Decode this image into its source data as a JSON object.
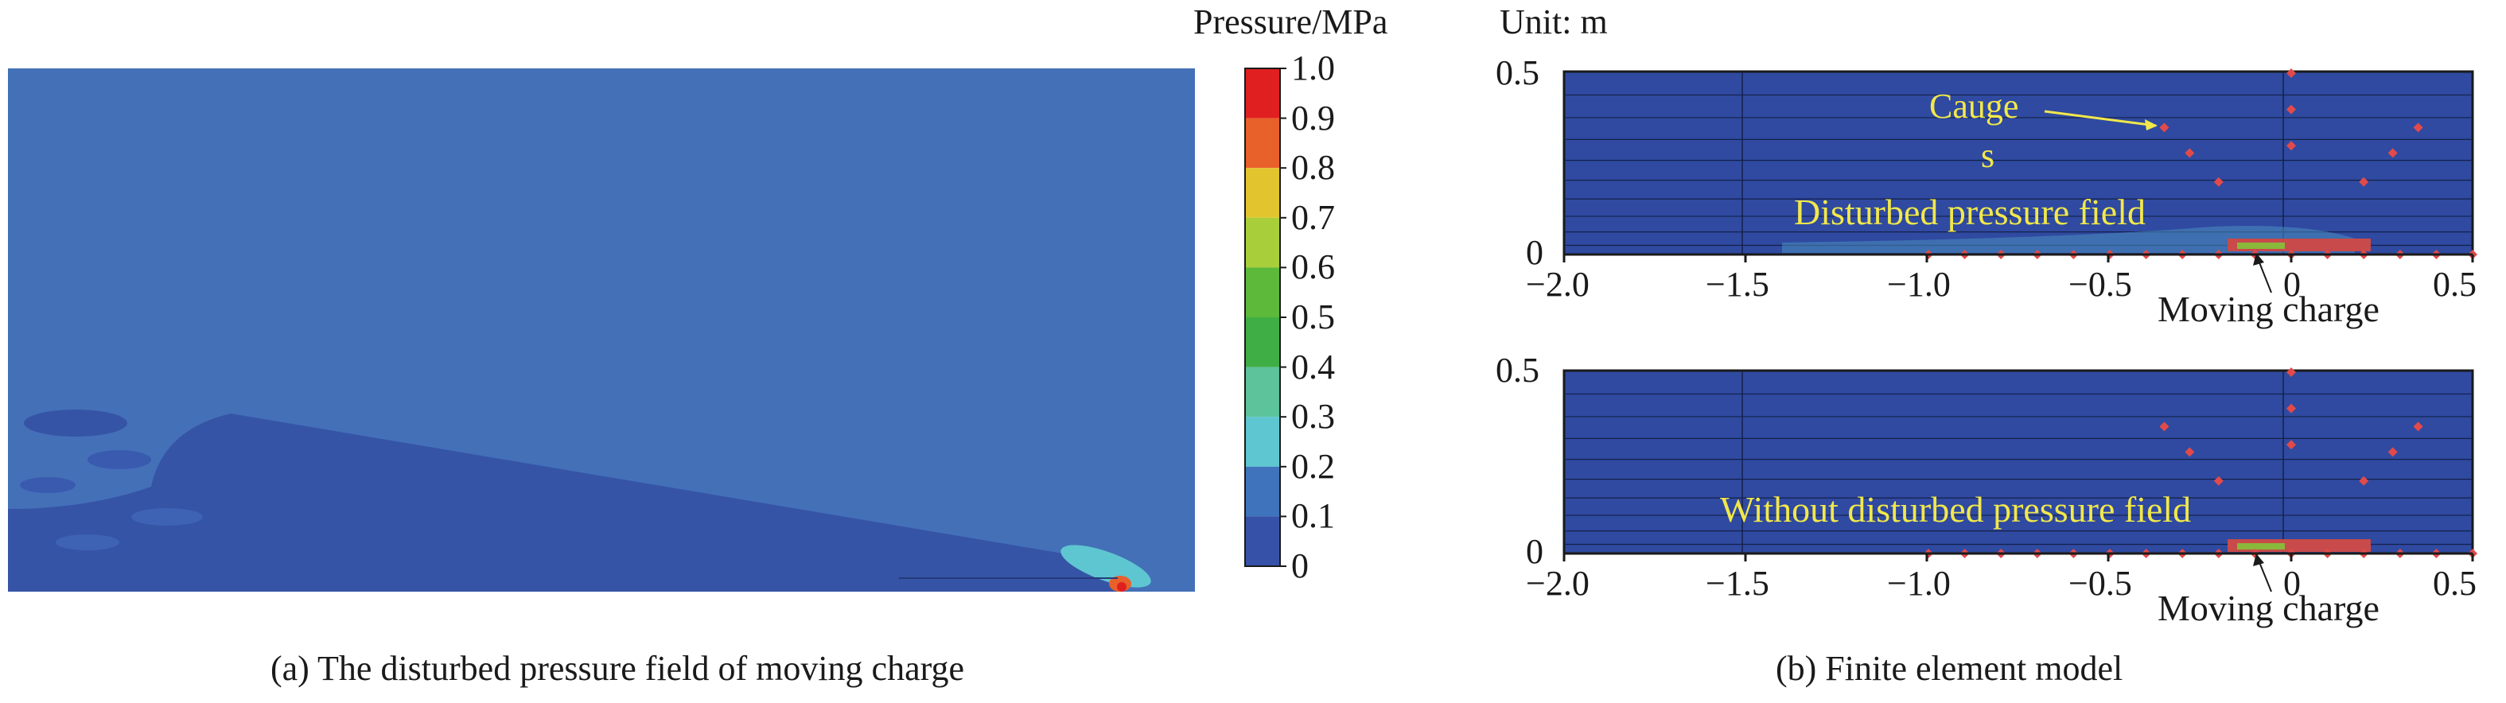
{
  "panel_a": {
    "caption": "(a) The disturbed pressure field of moving charge",
    "legend_title": "Pressure/MPa",
    "legend_ticks": [
      "1.0",
      "0.9",
      "0.8",
      "0.7",
      "0.6",
      "0.5",
      "0.4",
      "0.3",
      "0.2",
      "0.1",
      "0"
    ],
    "legend_colors": [
      "#e02020",
      "#e8602a",
      "#e2c52e",
      "#a8cf3a",
      "#5cb93a",
      "#3fae45",
      "#5cc39a",
      "#5ec6d0",
      "#3f73bb",
      "#3552a8"
    ],
    "field_color": "#4470b8",
    "disturbed_color": "#3654a6"
  },
  "panel_b": {
    "caption": "(b) Finite element model",
    "unit_label": "Unit: m",
    "x_ticks": [
      "−2.0",
      "−1.5",
      "−1.0",
      "−0.5",
      "0",
      "0.5"
    ],
    "y_ticks": [
      "0.5",
      "0"
    ],
    "top": {
      "gauge_label_1": "Cauge",
      "gauge_label_2": "s",
      "field_label": "Disturbed pressure field",
      "charge_label": "Moving charge"
    },
    "bottom": {
      "field_label": "Without disturbed pressure field",
      "charge_label": "Moving charge"
    },
    "mesh_color": "#2f4aa0",
    "label_color": "#f2e84a",
    "gauge_color": "#e24a4a"
  }
}
